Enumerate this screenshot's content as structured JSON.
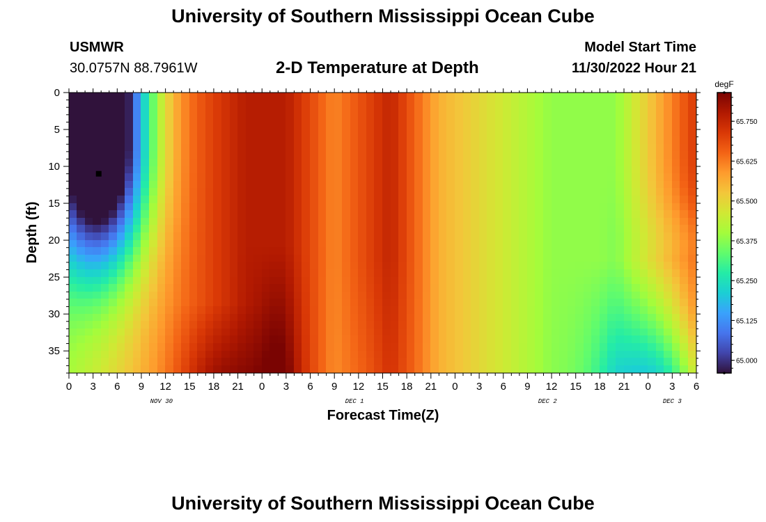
{
  "page": {
    "title": "University of Southern Mississippi Ocean Cube",
    "footer_title": "University of Southern Mississippi Ocean Cube",
    "station_id": "USMWR",
    "station_coords": "30.0757N  88.7961W",
    "plot_title": "2-D Temperature at Depth",
    "model_start_label": "Model Start Time",
    "model_start_value": "11/30/2022 Hour 21"
  },
  "chart_data": {
    "type": "heatmap",
    "title": "2-D Temperature at Depth",
    "xlabel": "Forecast Time(Z)",
    "ylabel": "Depth (ft)",
    "x_tick_labels": [
      "0",
      "3",
      "6",
      "9",
      "12",
      "15",
      "18",
      "21",
      "0",
      "3",
      "6",
      "9",
      "12",
      "15",
      "18",
      "21",
      "0",
      "3",
      "6",
      "9",
      "12",
      "15",
      "18",
      "21",
      "0",
      "3",
      "6"
    ],
    "x_date_labels": [
      "NOV 30",
      "DEC 1",
      "DEC 2",
      "DEC 3"
    ],
    "x_range_hours": [
      0,
      78
    ],
    "y_tick_labels": [
      "0",
      "5",
      "10",
      "15",
      "20",
      "25",
      "30",
      "35"
    ],
    "ylim": [
      0,
      38
    ],
    "y_inverted": true,
    "colorbar": {
      "units": "degF",
      "ticks": [
        "65.750",
        "65.625",
        "65.500",
        "65.375",
        "65.250",
        "65.125",
        "65.000"
      ],
      "range": [
        64.96,
        65.84
      ],
      "colors": [
        "#30123b",
        "#4145ab",
        "#4675ed",
        "#39a2fc",
        "#1bcfd4",
        "#24eca6",
        "#61fc6c",
        "#a4fc3b",
        "#d1e834",
        "#f3c63a",
        "#fe9b2d",
        "#f36315",
        "#d93806",
        "#b11901",
        "#7a0402"
      ]
    },
    "marker": {
      "x_hours": 3.7,
      "depth_ft": 11
    },
    "grid": false
  }
}
